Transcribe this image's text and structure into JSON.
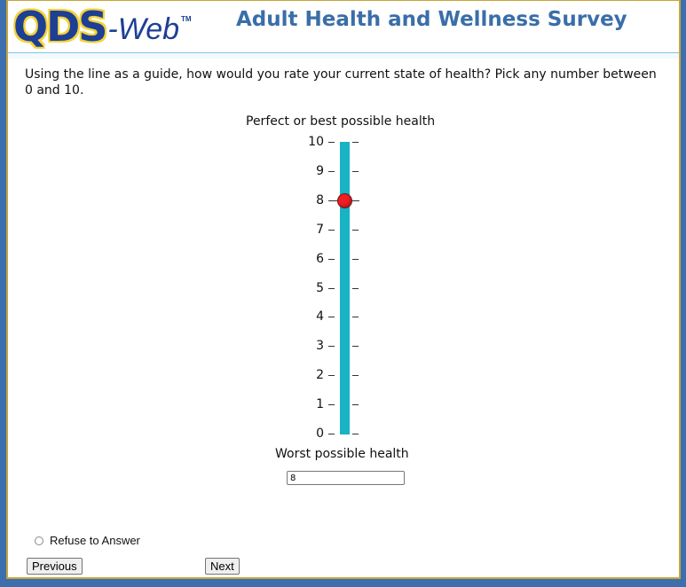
{
  "header": {
    "logo": {
      "main": "QDS",
      "suffix": "-Web",
      "tm": "TM"
    },
    "title": "Adult Health and Wellness Survey"
  },
  "question": {
    "text": "Using the line as a guide, how would you rate your current state of health? Pick any number between 0 and 10."
  },
  "scale": {
    "top_label": "Perfect or best possible health",
    "bottom_label": "Worst possible health",
    "ticks": [
      "10",
      "9",
      "8",
      "7",
      "6",
      "5",
      "4",
      "3",
      "2",
      "1",
      "0"
    ],
    "selected_value": 8,
    "bar_color": "#18b3c4",
    "marker_color": "#f01d24"
  },
  "answer": {
    "value": "8"
  },
  "refuse": {
    "label": "Refuse to Answer",
    "checked": false
  },
  "nav": {
    "previous_label": "Previous",
    "next_label": "Next"
  }
}
